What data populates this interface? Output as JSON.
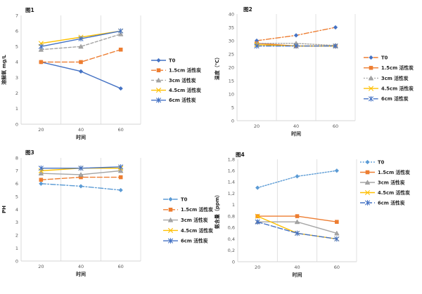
{
  "page": {
    "background": "#ffffff",
    "axis_color": "#d6d6d6",
    "grid_color": "#d9d9d9",
    "tick_color": "#595959"
  },
  "chart_data": [
    {
      "id": "chart1",
      "type": "line",
      "title": "图1",
      "xlabel": "时间",
      "ylabel": "溶解氧 mg/L",
      "categories": [
        "20",
        "40",
        "60"
      ],
      "ylim": [
        0,
        7
      ],
      "yticks": [
        0,
        1,
        2,
        3,
        4,
        5,
        6,
        7
      ],
      "grid": "vertical-category-boundaries",
      "legend_position": "right",
      "series": [
        {
          "name": "T0",
          "color": "#4472C4",
          "dash": "solid",
          "marker": "diamond",
          "values": [
            4.0,
            3.4,
            2.3
          ]
        },
        {
          "name": "1.5cm 活性炭",
          "color": "#ED7D31",
          "dash": "dash",
          "marker": "square",
          "values": [
            4.0,
            4.0,
            4.8
          ]
        },
        {
          "name": "3cm 活性炭",
          "color": "#A5A5A5",
          "dash": "shortdash",
          "marker": "triangle",
          "values": [
            4.8,
            5.0,
            5.8
          ]
        },
        {
          "name": "4.5cm 活性炭",
          "color": "#FFC000",
          "dash": "solid",
          "marker": "x",
          "values": [
            5.2,
            5.6,
            6.0
          ]
        },
        {
          "name": "6cm 活性炭",
          "color": "#4472C4",
          "dash": "solid",
          "marker": "star",
          "values": [
            5.0,
            5.5,
            6.0
          ]
        }
      ],
      "layout": {
        "plot": [
          30,
          22,
          170,
          155
        ],
        "title_pos": [
          36,
          17
        ],
        "legend": [
          215,
          86,
          14.2
        ],
        "ylabel_x": 8
      }
    },
    {
      "id": "chart2",
      "type": "line",
      "title": "图2",
      "xlabel": "时间",
      "ylabel": "温度（℃）",
      "categories": [
        "20",
        "40",
        "60"
      ],
      "ylim": [
        0,
        40
      ],
      "yticks": [
        0,
        5,
        10,
        15,
        20,
        25,
        30,
        35,
        40
      ],
      "grid": "vertical-category-boundaries",
      "legend_position": "right",
      "series": [
        {
          "name": "T0",
          "color": "#ED7D31",
          "marker_color": "#4472C4",
          "dash": "dashdot",
          "marker": "diamond",
          "values": [
            30,
            32,
            35
          ]
        },
        {
          "name": "1.5cm 活性炭",
          "color": "#ED7D31",
          "dash": "solid",
          "marker": "square",
          "values": [
            29,
            28,
            28
          ]
        },
        {
          "name": "3cm 活性炭",
          "color": "#A5A5A5",
          "dash": "dot",
          "marker": "triangle",
          "values": [
            29,
            29,
            28.2
          ]
        },
        {
          "name": "4.5cm 活性炭",
          "color": "#FFC000",
          "dash": "solid",
          "marker": "x",
          "values": [
            28.5,
            28,
            28
          ]
        },
        {
          "name": "6cm 活性炭",
          "color": "#4472C4",
          "dash": "dashdot",
          "marker": "star",
          "values": [
            28,
            28,
            28
          ]
        }
      ],
      "layout": {
        "plot": [
          37,
          20,
          168,
          152
        ],
        "title_pos": [
          46,
          16
        ],
        "legend": [
          217,
          82,
          14.7
        ],
        "ylabel_x": 11
      }
    },
    {
      "id": "chart3",
      "type": "line",
      "title": "图3",
      "xlabel": "时间",
      "ylabel": "PH",
      "categories": [
        "20",
        "40",
        "60"
      ],
      "ylim": [
        0,
        8
      ],
      "yticks": [
        0,
        1,
        2,
        3,
        4,
        5,
        6,
        7,
        8
      ],
      "grid": "vertical-category-boundaries",
      "legend_position": "right",
      "series": [
        {
          "name": "T0",
          "color": "#5B9BD5",
          "dash": "dashdot",
          "marker": "diamond",
          "values": [
            6.0,
            5.8,
            5.5
          ]
        },
        {
          "name": "1.5cm 活性炭",
          "color": "#ED7D31",
          "dash": "dash",
          "marker": "square",
          "values": [
            6.3,
            6.5,
            6.5
          ]
        },
        {
          "name": "3cm 活性炭",
          "color": "#A5A5A5",
          "dash": "solid",
          "marker": "triangle",
          "values": [
            6.8,
            6.7,
            7.0
          ]
        },
        {
          "name": "4.5cm 活性炭",
          "color": "#FFC000",
          "dash": "solid",
          "marker": "x",
          "values": [
            7.0,
            7.2,
            7.2
          ]
        },
        {
          "name": "6cm 活性炭",
          "color": "#4472C4",
          "dash": "solid",
          "marker": "star",
          "values": [
            7.2,
            7.2,
            7.3
          ]
        }
      ],
      "layout": {
        "plot": [
          30,
          15,
          170,
          147
        ],
        "title_pos": [
          36,
          10
        ],
        "legend": [
          232,
          74,
          14.8
        ],
        "ylabel_x": 8
      }
    },
    {
      "id": "chart4",
      "type": "line",
      "title": "图4",
      "xlabel": "时间",
      "ylabel": "氨含量（ppm）",
      "categories": [
        "20",
        "40",
        "60"
      ],
      "ylim": [
        0,
        1.8
      ],
      "yticks": [
        0,
        0.2,
        0.4,
        0.6,
        0.8,
        1,
        1.2,
        1.4,
        1.6,
        1.8
      ],
      "ytick_labels": [
        "0",
        "0,2",
        "0,4",
        "0,6",
        "0,8",
        "1",
        "1,2",
        "1,4",
        "1,6",
        "1,8"
      ],
      "grid": "vertical-category-boundaries",
      "legend_position": "right",
      "series": [
        {
          "name": "T0",
          "color": "#5B9BD5",
          "dash": "dot",
          "marker": "diamond",
          "values": [
            1.3,
            1.5,
            1.6
          ]
        },
        {
          "name": "1.5cm 活性炭",
          "color": "#ED7D31",
          "dash": "solid",
          "marker": "square",
          "values": [
            0.8,
            0.8,
            0.7
          ]
        },
        {
          "name": "3cm 活性炭",
          "color": "#A5A5A5",
          "dash": "solid",
          "marker": "triangle",
          "values": [
            0.7,
            0.7,
            0.5
          ]
        },
        {
          "name": "4.5cm 活性炭",
          "color": "#FFC000",
          "dash": "solid",
          "marker": "x",
          "values": [
            0.8,
            0.5,
            0.4
          ]
        },
        {
          "name": "6cm 活性炭",
          "color": "#4472C4",
          "dash": "dash",
          "marker": "star",
          "values": [
            0.7,
            0.5,
            0.4
          ]
        }
      ],
      "layout": {
        "plot": [
          38,
          17,
          169,
          146
        ],
        "title_pos": [
          35,
          13
        ],
        "legend": [
          212,
          21,
          14.5
        ],
        "ylabel_x": 11
      }
    }
  ]
}
